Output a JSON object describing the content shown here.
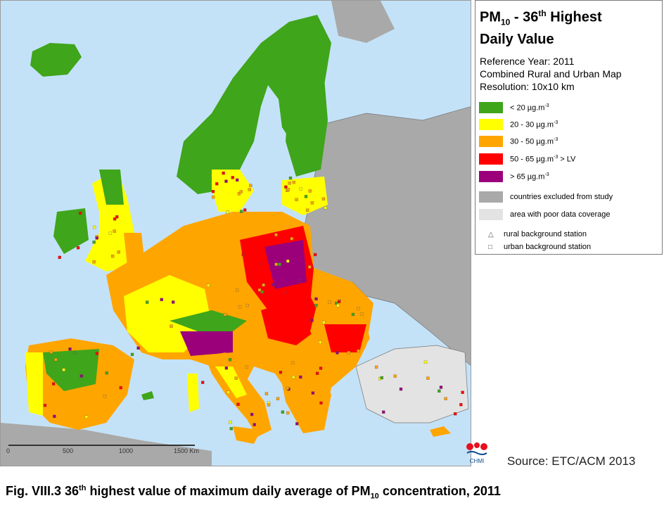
{
  "legend": {
    "title_main": "PM",
    "title_sub": "10",
    "title_mid": " - 36",
    "title_sup": "th",
    "title_end": " Highest",
    "title_line2": "Daily Value",
    "reference_year": "Reference Year: 2011",
    "map_type": "Combined Rural and Urban Map",
    "resolution": "Resolution: 10x10 km",
    "classes": [
      {
        "label_pre": "<  20  µg.m",
        "sup": "-3",
        "label_post": "",
        "color": "#3fa51a"
      },
      {
        "label_pre": "20 - 30  µg.m",
        "sup": "-3",
        "label_post": "",
        "color": "#ffff00"
      },
      {
        "label_pre": "30 - 50  µg.m",
        "sup": "-3",
        "label_post": "",
        "color": "#ffa500"
      },
      {
        "label_pre": "50 - 65  µg.m",
        "sup": "-3",
        "label_post": "  > LV",
        "color": "#ff0000"
      },
      {
        "label_pre": "  >  65  µg.m",
        "sup": "-3",
        "label_post": "",
        "color": "#9b007a"
      }
    ],
    "excluded_label": "countries excluded from study",
    "excluded_color": "#a9a9a9",
    "poor_coverage_label": "area with poor data coverage",
    "poor_coverage_color": "#e3e3e3",
    "rural_station_label": "rural background station",
    "urban_station_label": "urban background station"
  },
  "scale": {
    "ticks": [
      "0",
      "500",
      "1000",
      "1500 Km"
    ]
  },
  "logo": {
    "label": "CHMI"
  },
  "source": "Source: ETC/ACM 2013",
  "caption": {
    "prefix": "Fig. VIII.3  36",
    "sup": "th",
    "middle": " highest value of maximum daily average of PM",
    "sub": "10",
    "suffix": " concentration, 2011"
  },
  "map_colors": {
    "sea": "#c4e2f7",
    "excluded": "#a9a9a9",
    "poor": "#e3e3e3",
    "green": "#3fa51a",
    "yellow": "#ffff00",
    "orange": "#ffa500",
    "red": "#ff0000",
    "purple": "#9b007a"
  }
}
